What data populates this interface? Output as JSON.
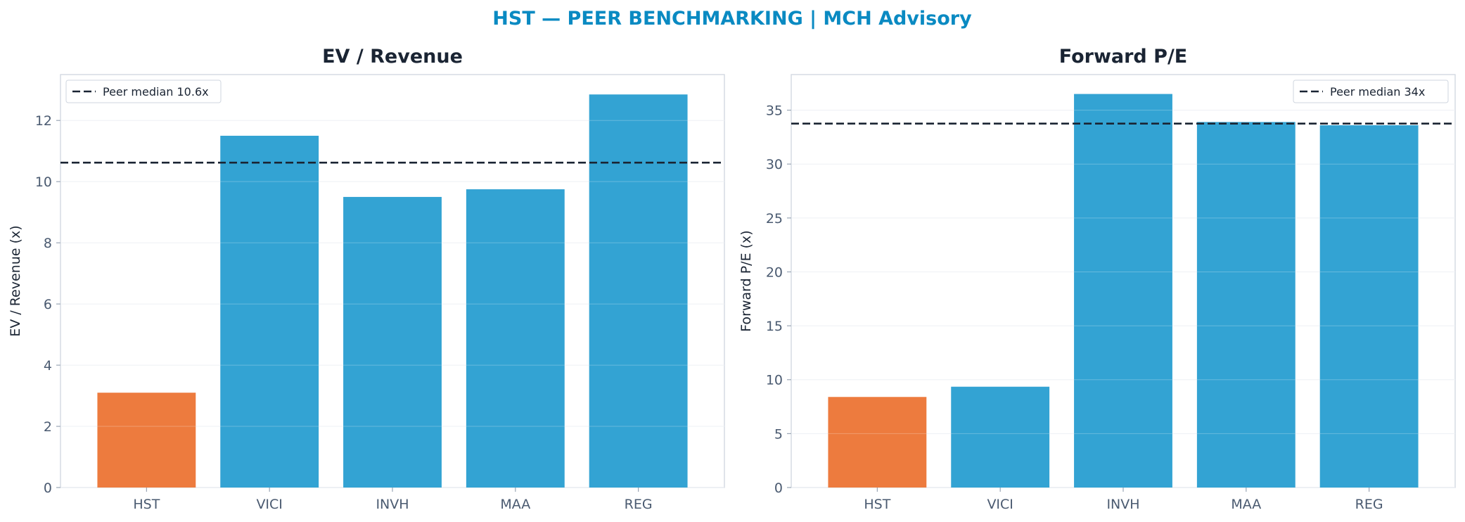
{
  "figure": {
    "title": "HST — PEER BENCHMARKING | MCH Advisory"
  },
  "colors": {
    "title": "#0a8ac2",
    "highlight": "#ed7b3e",
    "peer": "#33a3d3",
    "median_line": "#1a2433",
    "axis_text": "#4a5a70",
    "panel_title": "#1a2433"
  },
  "chart_data": [
    {
      "type": "bar",
      "title": "EV / Revenue",
      "ylabel": "EV / Revenue (x)",
      "xlabel": "",
      "categories": [
        "HST",
        "VICI",
        "INVH",
        "MAA",
        "REG"
      ],
      "values": [
        3.1,
        11.5,
        9.5,
        9.75,
        12.85
      ],
      "highlight": "HST",
      "ylim": [
        0,
        13.5
      ],
      "yticks": [
        0,
        2,
        4,
        6,
        8,
        10,
        12
      ],
      "reference_line": {
        "label": "Peer median 10.6x",
        "value": 10.62
      },
      "legend_position": "top-left",
      "grid": true
    },
    {
      "type": "bar",
      "title": "Forward P/E",
      "ylabel": "Forward P/E (x)",
      "xlabel": "",
      "categories": [
        "HST",
        "VICI",
        "INVH",
        "MAA",
        "REG"
      ],
      "values": [
        8.4,
        9.35,
        36.5,
        33.9,
        33.6
      ],
      "highlight": "HST",
      "ylim": [
        0,
        38.3
      ],
      "yticks": [
        0,
        5,
        10,
        15,
        20,
        25,
        30,
        35
      ],
      "reference_line": {
        "label": "Peer median 34x",
        "value": 33.75
      },
      "legend_position": "top-right",
      "grid": true
    }
  ]
}
